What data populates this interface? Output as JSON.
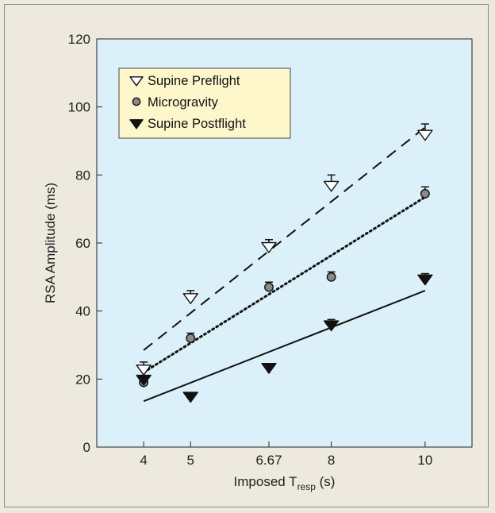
{
  "chart_data": {
    "type": "scatter",
    "xlabel": "Imposed T",
    "xlabel_subscript": "resp",
    "xlabel_unit": " (s)",
    "ylabel": "RSA Amplitude (ms)",
    "x_ticks": [
      4,
      5,
      6.67,
      8,
      10
    ],
    "x_tick_labels": [
      "4",
      "5",
      "6.67",
      "8",
      "10"
    ],
    "xlim": [
      3,
      11
    ],
    "ylim": [
      0,
      120
    ],
    "y_ticks": [
      0,
      20,
      40,
      60,
      80,
      100,
      120
    ],
    "grid": false,
    "legend_position": "top-left",
    "plot_background": "#dcf0f9",
    "legend_background": "#fff7cc",
    "series": [
      {
        "name": "Supine Preflight",
        "marker": "triangle-down-open",
        "fit_style": "dashed",
        "x": [
          4,
          5,
          6.67,
          8,
          10
        ],
        "y": [
          23,
          44,
          59,
          77,
          92
        ],
        "err": [
          2,
          2,
          2,
          3,
          3
        ],
        "fit": [
          [
            4,
            28.5
          ],
          [
            10,
            94
          ]
        ]
      },
      {
        "name": "Microgravity",
        "marker": "circle-gray",
        "fit_style": "dotted",
        "x": [
          4,
          5,
          6.67,
          8,
          10
        ],
        "y": [
          19,
          32,
          47,
          50,
          74.5
        ],
        "err": [
          1,
          1.5,
          1.5,
          1.5,
          2
        ],
        "fit": [
          [
            4,
            22
          ],
          [
            10,
            73.5
          ]
        ]
      },
      {
        "name": "Supine Postflight",
        "marker": "triangle-down-filled",
        "fit_style": "solid",
        "x": [
          4,
          5,
          6.67,
          8,
          10
        ],
        "y": [
          20,
          15,
          23.5,
          36,
          49.5
        ],
        "err": [
          1,
          1,
          1,
          1.5,
          1.5
        ],
        "fit": [
          [
            4,
            13.5
          ],
          [
            10,
            46
          ]
        ]
      }
    ]
  }
}
